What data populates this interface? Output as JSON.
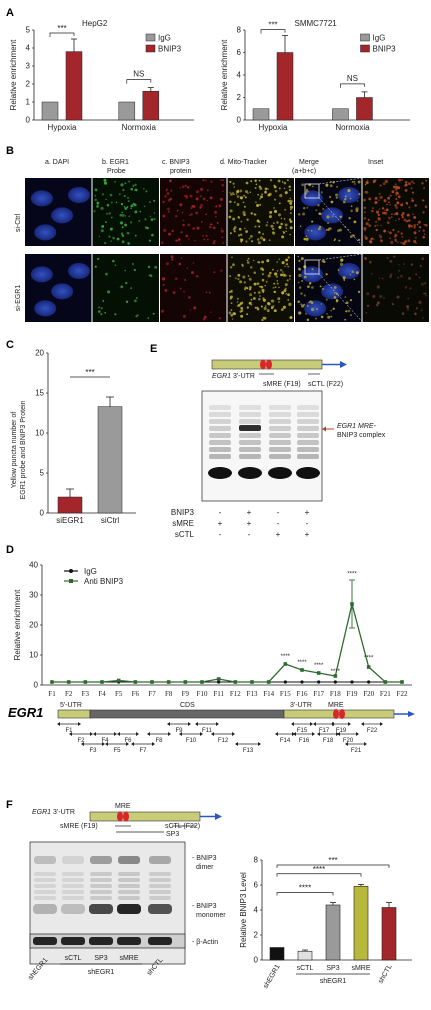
{
  "panelA": {
    "letter": "A",
    "charts": [
      {
        "title": "HepG2",
        "ylabel": "Relative enrichment",
        "yticks": [
          "0",
          "1",
          "2",
          "3",
          "4",
          "5"
        ],
        "legend": [
          "IgG",
          "BNIP3"
        ],
        "groups": [
          "Hypoxia",
          "Normoxia"
        ],
        "sig": [
          "***",
          "NS"
        ]
      },
      {
        "title": "SMMC7721",
        "ylabel": "Relative enrichment",
        "yticks": [
          "0",
          "2",
          "4",
          "6",
          "8"
        ],
        "legend": [
          "IgG",
          "BNIP3"
        ],
        "groups": [
          "Hypoxia",
          "Normoxia"
        ],
        "sig": [
          "***",
          "NS"
        ]
      }
    ]
  },
  "panelB": {
    "letter": "B",
    "columns": [
      "a. DAPI",
      "b. EGR1",
      "Probe",
      "c. BNIP3",
      "protein",
      "d. Mito-Tracker",
      "Merge",
      "(a+b+c)",
      "Inset"
    ],
    "rows": [
      "si-Ctrl",
      "si-EGR1"
    ]
  },
  "panelC": {
    "letter": "C",
    "ylabel_1": "Yellow puncta number of",
    "ylabel_2": "EGR1 probe and BNIP3 Protein",
    "yticks": [
      "0",
      "5",
      "10",
      "15",
      "20"
    ],
    "categories": [
      "siEGR1",
      "siCtrl"
    ],
    "sig": "***"
  },
  "panelD": {
    "letter": "D",
    "ylabel": "Relative enrichment",
    "yticks": [
      "0",
      "10",
      "20",
      "30",
      "40"
    ],
    "legend": [
      "IgG",
      "Anti BNIP3"
    ],
    "xticks": [
      "F1",
      "F2",
      "F3",
      "F4",
      "F5",
      "F6",
      "F7",
      "F8",
      "F9",
      "F10",
      "F11",
      "F12",
      "F13",
      "F14",
      "F15",
      "F16",
      "F17",
      "F18",
      "F19",
      "F20",
      "F21",
      "F22"
    ],
    "sig": [
      "****",
      "****",
      "****",
      "****",
      "****",
      "****",
      "****"
    ],
    "gene": "EGR1",
    "regions": [
      "5'-UTR",
      "CDS",
      "3'-UTR",
      "MRE"
    ],
    "fragments": [
      "F1",
      "F2",
      "F3",
      "F4",
      "F5",
      "F6",
      "F7",
      "F8",
      "F9",
      "F10",
      "F11",
      "F12",
      "F13",
      "F14",
      "F15",
      "F16",
      "F17",
      "F18",
      "F19",
      "F20",
      "F21",
      "F22"
    ]
  },
  "panelE": {
    "letter": "E",
    "gene": "EGR1",
    "utr": "3'-UTR",
    "probes": [
      "sMRE (F19)",
      "sCTL (F22)"
    ],
    "complex_1": "EGR1 MRE-",
    "complex_2": "BNIP3 complex",
    "row_labels": [
      "BNIP3",
      "sMRE",
      "sCTL"
    ],
    "row_values": [
      [
        "-",
        "+",
        "-",
        "+"
      ],
      [
        "+",
        "+",
        "-",
        "-"
      ],
      [
        "-",
        "-",
        "+",
        "+"
      ]
    ]
  },
  "panelF": {
    "letter": "F",
    "gene": "EGR1",
    "utr": "3'-UTR",
    "mre": "MRE",
    "probes": [
      "sMRE (F19)",
      "sCTL (F22)",
      "SP3"
    ],
    "bands": [
      "BNIP3",
      "dimer",
      "BNIP3",
      "monomer",
      "β-Actin"
    ],
    "lanes": [
      "shEGR1",
      "sCTL",
      "SP3",
      "sMRE",
      "shCTL"
    ],
    "group_label": "shEGR1",
    "ylabel": "Relative BNIP3 Level",
    "yticks": [
      "0",
      "2",
      "4",
      "6",
      "8"
    ],
    "sig": [
      "***",
      "****",
      "****"
    ]
  },
  "chart_data": [
    {
      "type": "bar",
      "title": "HepG2",
      "categories": [
        "Hypoxia",
        "Normoxia"
      ],
      "series": [
        {
          "name": "IgG",
          "values": [
            1.0,
            1.0
          ]
        },
        {
          "name": "BNIP3",
          "values": [
            3.8,
            1.6
          ]
        }
      ],
      "errors": [
        [
          0,
          0
        ],
        [
          0.7,
          0.2
        ]
      ],
      "ylim": [
        0,
        5
      ],
      "ylabel": "Relative enrichment",
      "colors": [
        "#9a9a9a",
        "#a3262a"
      ]
    },
    {
      "type": "bar",
      "title": "SMMC7721",
      "categories": [
        "Hypoxia",
        "Normoxia"
      ],
      "series": [
        {
          "name": "IgG",
          "values": [
            1.0,
            1.0
          ]
        },
        {
          "name": "BNIP3",
          "values": [
            6.0,
            2.0
          ]
        }
      ],
      "errors": [
        [
          0,
          0
        ],
        [
          1.5,
          0.5
        ]
      ],
      "ylim": [
        0,
        8
      ],
      "ylabel": "Relative enrichment",
      "colors": [
        "#9a9a9a",
        "#a3262a"
      ]
    },
    {
      "type": "bar",
      "categories": [
        "siEGR1",
        "siCtrl"
      ],
      "values": [
        2.0,
        13.3
      ],
      "errors": [
        1.0,
        1.2
      ],
      "ylim": [
        0,
        20
      ],
      "colors": [
        "#a3262a",
        "#9a9a9a"
      ]
    },
    {
      "type": "line",
      "categories": [
        "F1",
        "F2",
        "F3",
        "F4",
        "F5",
        "F6",
        "F7",
        "F8",
        "F9",
        "F10",
        "F11",
        "F12",
        "F13",
        "F14",
        "F15",
        "F16",
        "F17",
        "F18",
        "F19",
        "F20",
        "F21",
        "F22"
      ],
      "series": [
        {
          "name": "IgG",
          "values": [
            1,
            1,
            1,
            1,
            1,
            1,
            1,
            1,
            1,
            1,
            1,
            1,
            1,
            1,
            1,
            1,
            1,
            1,
            1,
            1,
            1,
            1
          ]
        },
        {
          "name": "Anti BNIP3",
          "values": [
            1,
            1,
            1,
            1,
            1.5,
            1,
            1,
            1,
            1,
            1,
            2,
            1,
            1,
            1,
            7,
            5,
            4,
            3,
            27,
            6,
            1,
            1
          ]
        }
      ],
      "ylim": [
        0,
        40
      ],
      "ylabel": "Relative enrichment",
      "colors": [
        "#111111",
        "#2e6b2e"
      ]
    },
    {
      "type": "bar",
      "categories": [
        "shEGR1",
        "sCTL",
        "SP3",
        "sMRE",
        "shCTL"
      ],
      "values": [
        1.0,
        0.7,
        4.4,
        5.9,
        4.2
      ],
      "errors": [
        0,
        0.1,
        0.2,
        0.15,
        0.4
      ],
      "ylim": [
        0,
        8
      ],
      "ylabel": "Relative BNIP3 Level",
      "colors": [
        "#111111",
        "#e0e0e0",
        "#9a9a9a",
        "#b8b83a",
        "#a3262a"
      ]
    }
  ]
}
